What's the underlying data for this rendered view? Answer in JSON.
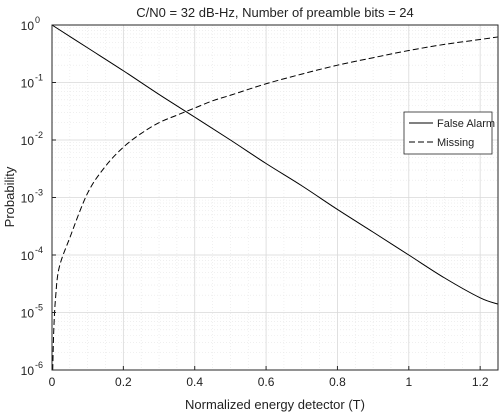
{
  "chart_data": {
    "type": "line",
    "title": "C/N0 = 32 dB-Hz, Number of preamble bits = 24",
    "xlabel": "Normalized energy detector (T)",
    "ylabel": "Probability",
    "xlim": [
      0,
      1.25
    ],
    "ylim": [
      1e-06,
      1
    ],
    "y_scale": "log",
    "grid": true,
    "minor_grid": true,
    "legend_position": "top-right",
    "x_ticks": [
      0,
      0.2,
      0.4,
      0.6,
      0.8,
      1,
      1.2
    ],
    "x_tick_labels": [
      "0",
      "0.2",
      "0.4",
      "0.6",
      "0.8",
      "1",
      "1.2"
    ],
    "y_ticks": [
      1e-06,
      1e-05,
      0.0001,
      0.001,
      0.01,
      0.1,
      1
    ],
    "y_tick_bases": [
      "10",
      "10",
      "10",
      "10",
      "10",
      "10",
      "10"
    ],
    "y_tick_exponents": [
      "-6",
      "-5",
      "-4",
      "-3",
      "-2",
      "-1",
      "0"
    ],
    "series": [
      {
        "name": "False Alarm",
        "style": "solid",
        "color": "#000000",
        "x": [
          0,
          0.1,
          0.2,
          0.3,
          0.4,
          0.5,
          0.6,
          0.7,
          0.8,
          0.9,
          1.0,
          1.1,
          1.2,
          1.25
        ],
        "y": [
          1.0,
          0.4,
          0.16,
          0.062,
          0.025,
          0.01,
          0.0039,
          0.0016,
          0.00062,
          0.00025,
          0.0001,
          4e-05,
          1.8e-05,
          1.4e-05
        ]
      },
      {
        "name": "Missing",
        "style": "dashed",
        "color": "#000000",
        "x": [
          0.002,
          0.005,
          0.01,
          0.02,
          0.05,
          0.1,
          0.15,
          0.2,
          0.25,
          0.3,
          0.35,
          0.4,
          0.45,
          0.5,
          0.6,
          0.7,
          0.8,
          0.9,
          1.0,
          1.1,
          1.2,
          1.25
        ],
        "y": [
          1e-06,
          5e-06,
          1.8e-05,
          6e-05,
          0.0002,
          0.0012,
          0.0035,
          0.0075,
          0.013,
          0.02,
          0.027,
          0.036,
          0.048,
          0.06,
          0.095,
          0.14,
          0.2,
          0.27,
          0.36,
          0.46,
          0.56,
          0.62
        ]
      }
    ]
  }
}
